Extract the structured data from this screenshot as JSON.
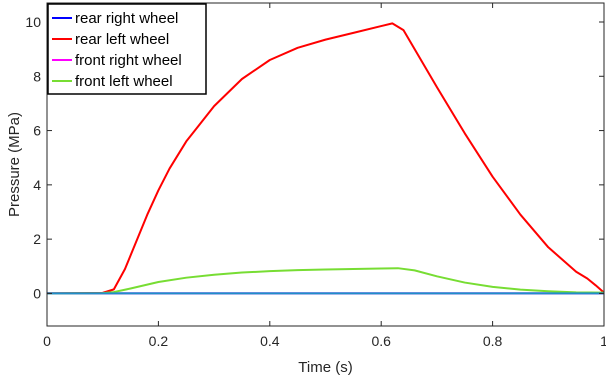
{
  "chart_data": {
    "type": "line",
    "xlabel": "Time (s)",
    "ylabel": "Pressure (MPa)",
    "xlim": [
      0,
      1
    ],
    "ylim": [
      -1.2,
      10.7
    ],
    "xticks": [
      0,
      0.2,
      0.4,
      0.6,
      0.8,
      1
    ],
    "xtick_labels": [
      "0",
      "0.2",
      "0.4",
      "0.6",
      "0.8",
      "1"
    ],
    "yticks": [
      0,
      2,
      4,
      6,
      8,
      10
    ],
    "ytick_labels": [
      "0",
      "2",
      "4",
      "6",
      "8",
      "10"
    ],
    "grid": false,
    "legend_position": "top-left",
    "series": [
      {
        "name": "rear right wheel",
        "color": "#0000ff",
        "x": [
          0,
          1
        ],
        "y": [
          0,
          0
        ]
      },
      {
        "name": "rear left wheel",
        "color": "#ff0000",
        "x": [
          0,
          0.1,
          0.12,
          0.14,
          0.16,
          0.18,
          0.2,
          0.22,
          0.25,
          0.3,
          0.35,
          0.4,
          0.45,
          0.5,
          0.55,
          0.6,
          0.62,
          0.64,
          0.66,
          0.7,
          0.75,
          0.8,
          0.85,
          0.9,
          0.95,
          0.97,
          0.985,
          1.0
        ],
        "y": [
          0,
          0.02,
          0.15,
          0.9,
          1.9,
          2.9,
          3.8,
          4.6,
          5.6,
          6.9,
          7.9,
          8.6,
          9.05,
          9.35,
          9.6,
          9.85,
          9.95,
          9.7,
          9.0,
          7.6,
          5.9,
          4.3,
          2.9,
          1.7,
          0.8,
          0.55,
          0.3,
          0.03
        ]
      },
      {
        "name": "front right wheel",
        "color": "#ff00ff",
        "x": [
          0,
          1
        ],
        "y": [
          0,
          0
        ]
      },
      {
        "name": "front left wheel",
        "color": "#77dd33",
        "x": [
          0,
          0.1,
          0.12,
          0.15,
          0.2,
          0.25,
          0.3,
          0.35,
          0.4,
          0.45,
          0.5,
          0.55,
          0.6,
          0.63,
          0.66,
          0.7,
          0.75,
          0.8,
          0.85,
          0.9,
          0.95,
          1.0
        ],
        "y": [
          0,
          0.01,
          0.05,
          0.18,
          0.42,
          0.58,
          0.69,
          0.77,
          0.82,
          0.86,
          0.88,
          0.9,
          0.92,
          0.93,
          0.85,
          0.63,
          0.4,
          0.24,
          0.14,
          0.08,
          0.04,
          0.03
        ]
      },
      {
        "name": "",
        "color": "#1f8fc8",
        "x": [
          0,
          1
        ],
        "y": [
          0,
          0
        ]
      }
    ]
  }
}
